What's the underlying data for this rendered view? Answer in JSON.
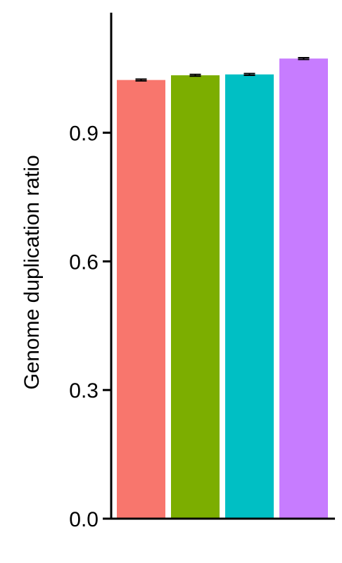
{
  "chart_data": {
    "type": "bar",
    "ylabel": "Genome duplication ratio",
    "xlabel": "",
    "ylim": [
      0,
      1.18
    ],
    "yticks": [
      0.0,
      0.3,
      0.6,
      0.9
    ],
    "ytick_labels": [
      "0.0",
      "0.3",
      "0.6",
      "0.9"
    ],
    "categories": [
      "",
      "",
      "",
      ""
    ],
    "values": [
      1.023,
      1.034,
      1.036,
      1.073
    ],
    "errors": [
      0.002,
      0.002,
      0.002,
      0.002
    ],
    "colors": [
      "#F8766D",
      "#7CAE00",
      "#00BFC4",
      "#C77CFF"
    ],
    "grid": false,
    "legend": "none"
  }
}
